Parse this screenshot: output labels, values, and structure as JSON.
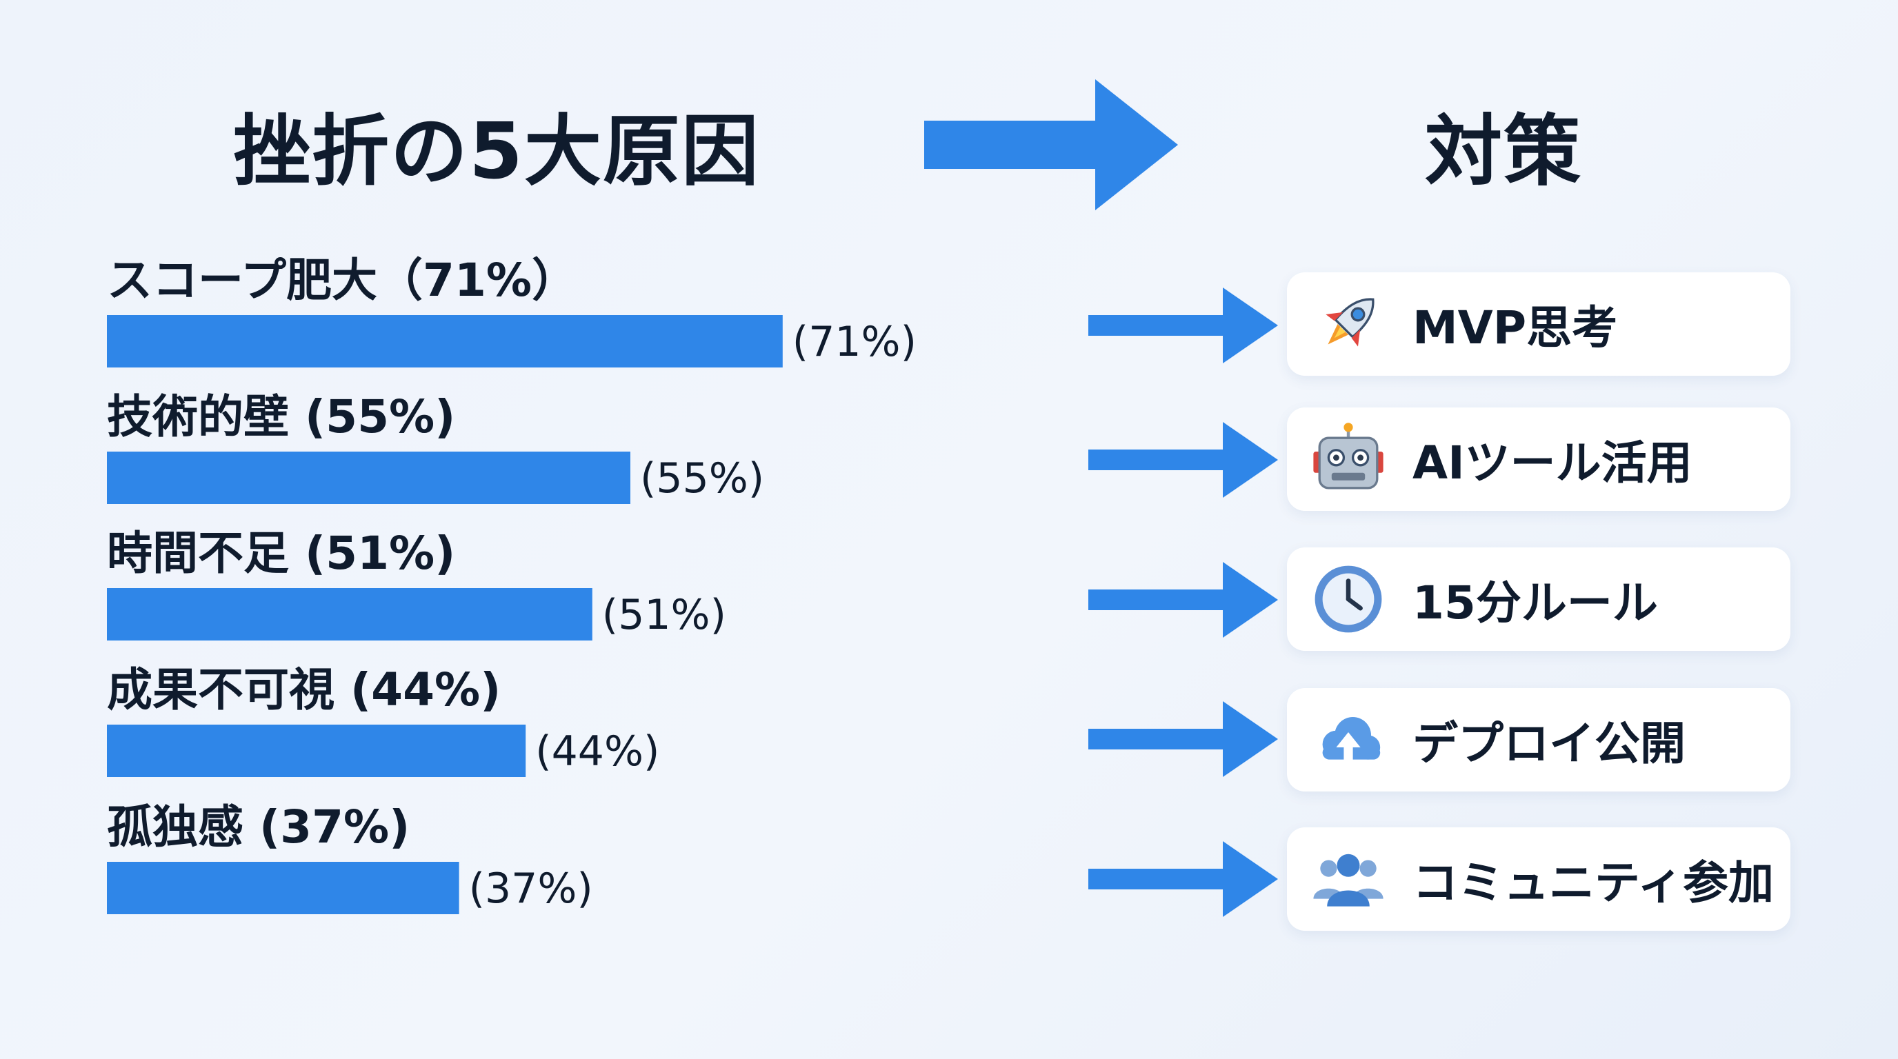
{
  "left_title": "挫折の5大原因",
  "right_title": "対策",
  "colors": {
    "bar": "#2f86e8",
    "arrow": "#2f86e8",
    "text": "#0f1b2d",
    "card_bg": "#ffffff"
  },
  "chart_data": {
    "type": "bar",
    "orientation": "horizontal",
    "title": "挫折の5大原因",
    "unit": "%",
    "xlim": [
      0,
      100
    ],
    "categories": [
      "スコープ肥大（71%）",
      "技術的壁 (55%)",
      "時間不足 (51%)",
      "成果不可視 (44%)",
      "孤独感 (37%)"
    ],
    "values": [
      71,
      55,
      51,
      44,
      37
    ],
    "data_labels": [
      "(71%)",
      "(55%)",
      "(51%)",
      "(44%)",
      "(37%)"
    ],
    "grid": false,
    "legend": "none"
  },
  "countermeasures": [
    {
      "icon": "rocket-icon",
      "label": "MVP思考"
    },
    {
      "icon": "robot-icon",
      "label": "AIツール活用"
    },
    {
      "icon": "clock-icon",
      "label": "15分ルール"
    },
    {
      "icon": "cloud-upload-icon",
      "label": "デプロイ公開"
    },
    {
      "icon": "people-icon",
      "label": "コミュニティ参加"
    }
  ]
}
